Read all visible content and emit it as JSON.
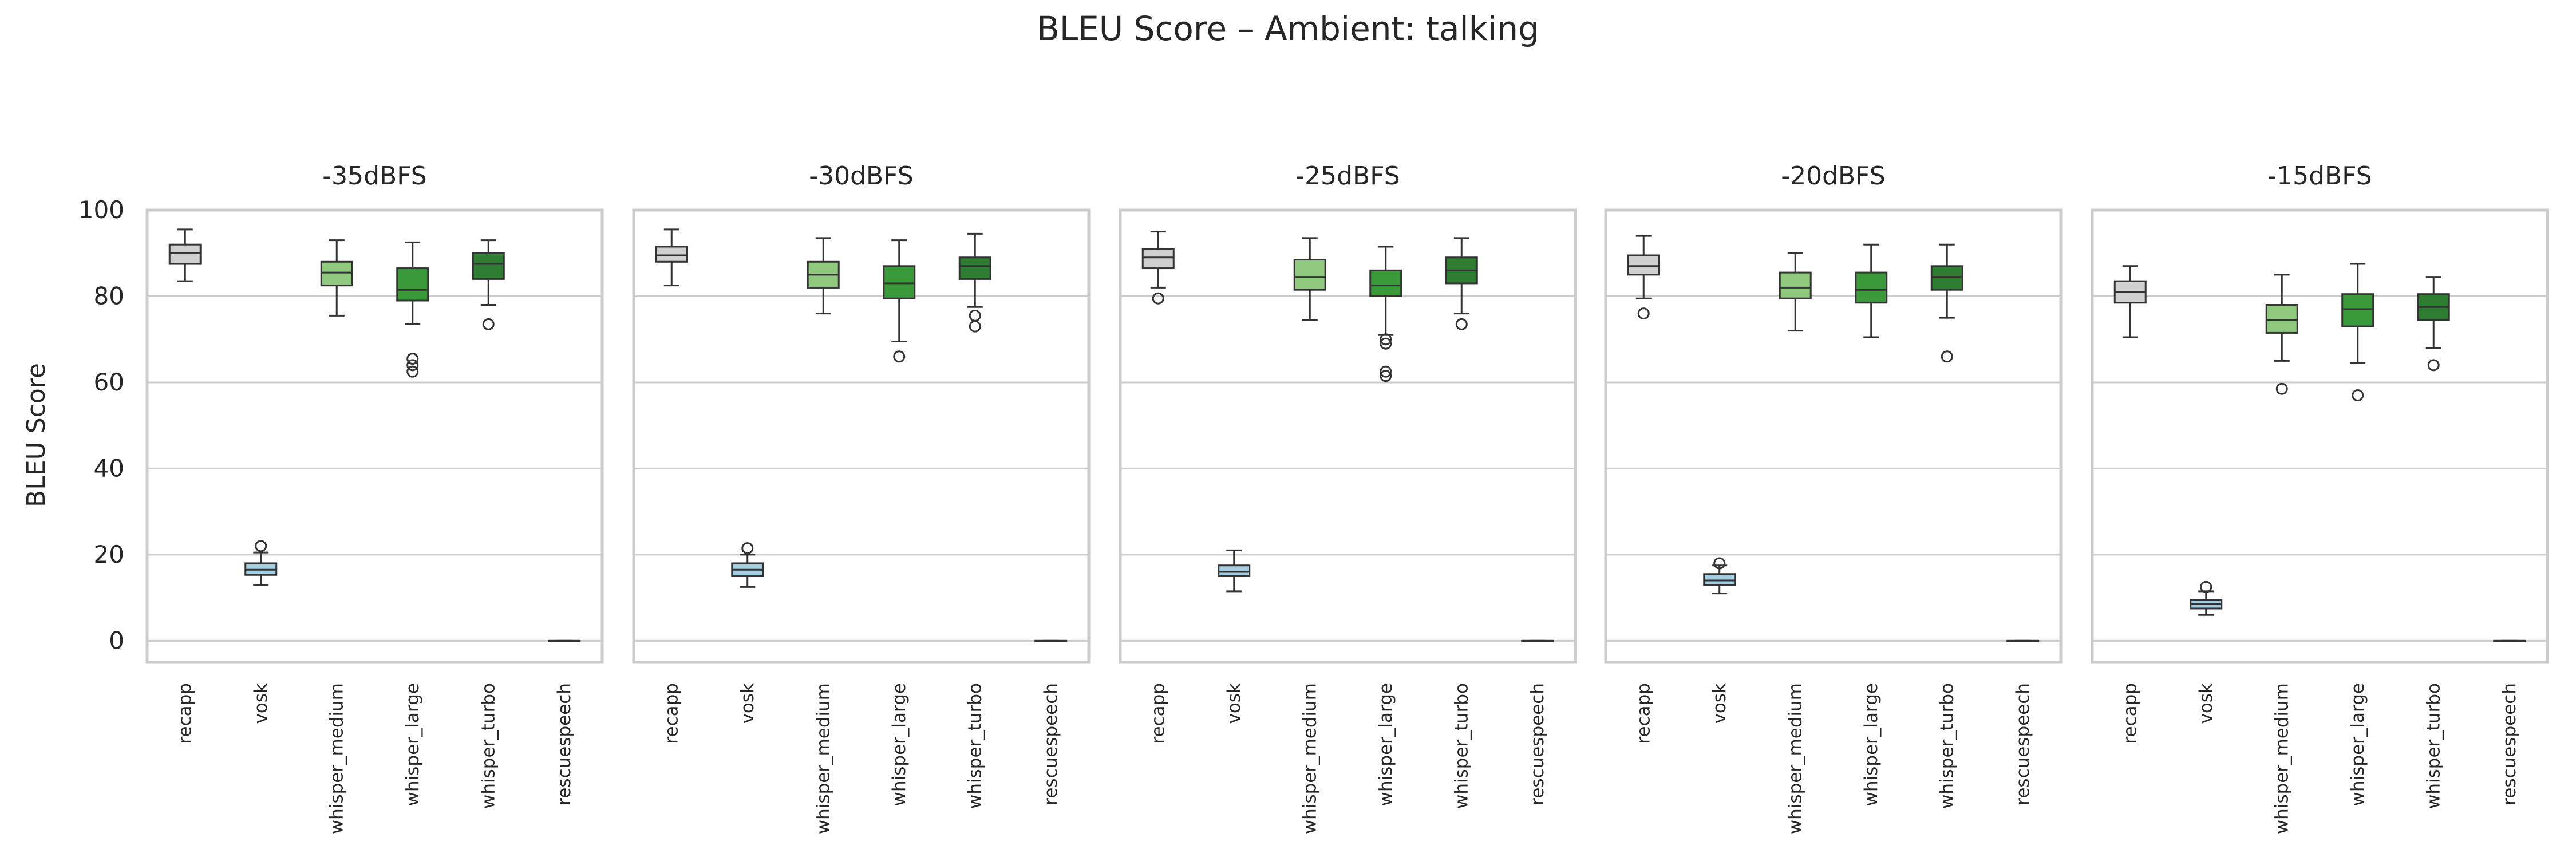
{
  "chart_data": {
    "type": "box",
    "title": "BLEU Score – Ambient: talking",
    "ylabel": "BLEU Score",
    "ylim": [
      -5,
      100
    ],
    "yticks": [
      0,
      20,
      40,
      60,
      80,
      100
    ],
    "grid": true,
    "categories": [
      "recapp",
      "vosk",
      "whisper_medium",
      "whisper_large",
      "whisper_turbo",
      "rescuespeech"
    ],
    "category_colors": [
      "#d0d0d0",
      "#a6cee3",
      "#8fc97e",
      "#3a9a3a",
      "#2e7d32",
      "#2a7a2a"
    ],
    "panels": [
      {
        "title": "-35dBFS",
        "boxes": [
          {
            "category": "recapp",
            "whislo": 83.5,
            "q1": 87.5,
            "med": 90.0,
            "q3": 92.0,
            "whishi": 95.5,
            "fliers": []
          },
          {
            "category": "vosk",
            "whislo": 13.0,
            "q1": 15.3,
            "med": 16.5,
            "q3": 18.0,
            "whishi": 20.5,
            "fliers": [
              22.0
            ]
          },
          {
            "category": "whisper_medium",
            "whislo": 75.5,
            "q1": 82.5,
            "med": 85.5,
            "q3": 88.0,
            "whishi": 93.0,
            "fliers": []
          },
          {
            "category": "whisper_large",
            "whislo": 73.5,
            "q1": 79.0,
            "med": 81.5,
            "q3": 86.5,
            "whishi": 92.5,
            "fliers": [
              65.5,
              64.0,
              62.5
            ]
          },
          {
            "category": "whisper_turbo",
            "whislo": 78.0,
            "q1": 84.0,
            "med": 87.5,
            "q3": 90.0,
            "whishi": 93.0,
            "fliers": [
              73.5
            ]
          },
          {
            "category": "rescuespeech",
            "whislo": 0.0,
            "q1": 0.0,
            "med": 0.0,
            "q3": 0.0,
            "whishi": 0.0,
            "fliers": []
          }
        ]
      },
      {
        "title": "-30dBFS",
        "boxes": [
          {
            "category": "recapp",
            "whislo": 82.5,
            "q1": 88.0,
            "med": 89.5,
            "q3": 91.5,
            "whishi": 95.5,
            "fliers": []
          },
          {
            "category": "vosk",
            "whislo": 12.5,
            "q1": 15.0,
            "med": 16.5,
            "q3": 18.0,
            "whishi": 20.0,
            "fliers": [
              21.5
            ]
          },
          {
            "category": "whisper_medium",
            "whislo": 76.0,
            "q1": 82.0,
            "med": 85.0,
            "q3": 88.0,
            "whishi": 93.5,
            "fliers": []
          },
          {
            "category": "whisper_large",
            "whislo": 69.5,
            "q1": 79.5,
            "med": 83.0,
            "q3": 87.0,
            "whishi": 93.0,
            "fliers": [
              66.0
            ]
          },
          {
            "category": "whisper_turbo",
            "whislo": 77.5,
            "q1": 84.0,
            "med": 87.0,
            "q3": 89.0,
            "whishi": 94.5,
            "fliers": [
              75.5,
              73.0
            ]
          },
          {
            "category": "rescuespeech",
            "whislo": 0.0,
            "q1": 0.0,
            "med": 0.0,
            "q3": 0.0,
            "whishi": 0.0,
            "fliers": []
          }
        ]
      },
      {
        "title": "-25dBFS",
        "boxes": [
          {
            "category": "recapp",
            "whislo": 82.0,
            "q1": 86.5,
            "med": 89.0,
            "q3": 91.0,
            "whishi": 95.0,
            "fliers": [
              79.5
            ]
          },
          {
            "category": "vosk",
            "whislo": 11.5,
            "q1": 15.0,
            "med": 16.0,
            "q3": 17.5,
            "whishi": 21.0,
            "fliers": []
          },
          {
            "category": "whisper_medium",
            "whislo": 74.5,
            "q1": 81.5,
            "med": 84.5,
            "q3": 88.5,
            "whishi": 93.5,
            "fliers": []
          },
          {
            "category": "whisper_large",
            "whislo": 71.0,
            "q1": 80.0,
            "med": 82.5,
            "q3": 86.0,
            "whishi": 91.5,
            "fliers": [
              70.0,
              69.0,
              62.5,
              61.5
            ]
          },
          {
            "category": "whisper_turbo",
            "whislo": 76.0,
            "q1": 83.0,
            "med": 86.0,
            "q3": 89.0,
            "whishi": 93.5,
            "fliers": [
              73.5
            ]
          },
          {
            "category": "rescuespeech",
            "whislo": 0.0,
            "q1": 0.0,
            "med": 0.0,
            "q3": 0.0,
            "whishi": 0.0,
            "fliers": []
          }
        ]
      },
      {
        "title": "-20dBFS",
        "boxes": [
          {
            "category": "recapp",
            "whislo": 79.5,
            "q1": 85.0,
            "med": 87.0,
            "q3": 89.5,
            "whishi": 94.0,
            "fliers": [
              76.0
            ]
          },
          {
            "category": "vosk",
            "whislo": 11.0,
            "q1": 13.0,
            "med": 14.0,
            "q3": 15.5,
            "whishi": 17.5,
            "fliers": [
              18.0
            ]
          },
          {
            "category": "whisper_medium",
            "whislo": 72.0,
            "q1": 79.5,
            "med": 82.0,
            "q3": 85.5,
            "whishi": 90.0,
            "fliers": []
          },
          {
            "category": "whisper_large",
            "whislo": 70.5,
            "q1": 78.5,
            "med": 81.5,
            "q3": 85.5,
            "whishi": 92.0,
            "fliers": []
          },
          {
            "category": "whisper_turbo",
            "whislo": 75.0,
            "q1": 81.5,
            "med": 84.5,
            "q3": 87.0,
            "whishi": 92.0,
            "fliers": [
              66.0
            ]
          },
          {
            "category": "rescuespeech",
            "whislo": 0.0,
            "q1": 0.0,
            "med": 0.0,
            "q3": 0.0,
            "whishi": 0.0,
            "fliers": []
          }
        ]
      },
      {
        "title": "-15dBFS",
        "boxes": [
          {
            "category": "recapp",
            "whislo": 70.5,
            "q1": 78.5,
            "med": 81.0,
            "q3": 83.5,
            "whishi": 87.0,
            "fliers": []
          },
          {
            "category": "vosk",
            "whislo": 6.0,
            "q1": 7.5,
            "med": 8.5,
            "q3": 9.5,
            "whishi": 11.5,
            "fliers": [
              12.5
            ]
          },
          {
            "category": "whisper_medium",
            "whislo": 65.0,
            "q1": 71.5,
            "med": 74.5,
            "q3": 78.0,
            "whishi": 85.0,
            "fliers": [
              58.5
            ]
          },
          {
            "category": "whisper_large",
            "whislo": 64.5,
            "q1": 73.0,
            "med": 77.0,
            "q3": 80.5,
            "whishi": 87.5,
            "fliers": [
              57.0
            ]
          },
          {
            "category": "whisper_turbo",
            "whislo": 68.0,
            "q1": 74.5,
            "med": 77.5,
            "q3": 80.5,
            "whishi": 84.5,
            "fliers": [
              64.0
            ]
          },
          {
            "category": "rescuespeech",
            "whislo": 0.0,
            "q1": 0.0,
            "med": 0.0,
            "q3": 0.0,
            "whishi": 0.0,
            "fliers": []
          }
        ]
      }
    ]
  }
}
